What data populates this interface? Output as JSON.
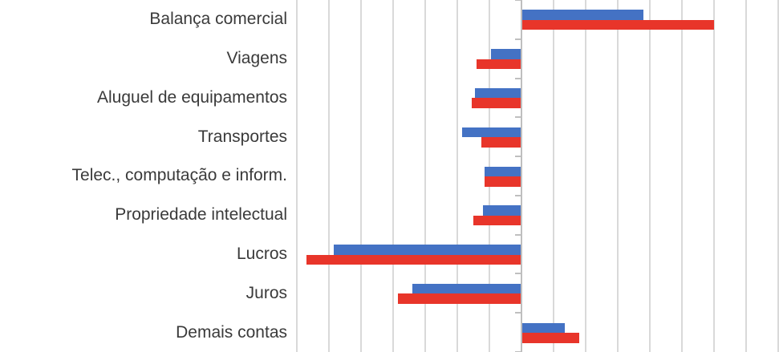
{
  "chart_data": {
    "type": "bar",
    "orientation": "horizontal",
    "title": "",
    "categories": [
      "Balança comercial",
      "Viagens",
      "Aluguel de equipamentos",
      "Transportes",
      "Telec., computação e inform.",
      "Propriedade intelectual",
      "Lucros",
      "Juros",
      "Demais contas"
    ],
    "series": [
      {
        "name": "blue",
        "color": "#4472C4",
        "values": [
          38,
          -9.5,
          -14.5,
          -18.5,
          -11.5,
          -12,
          -58.5,
          -34,
          13.5
        ]
      },
      {
        "name": "red",
        "color": "#E8352A",
        "values": [
          60,
          -14,
          -15.5,
          -12.5,
          -11.5,
          -15,
          -67,
          -38.5,
          18
        ]
      }
    ],
    "xlim": [
      -70,
      80
    ],
    "gridline_step": 10,
    "grid": true,
    "legend_position": "none",
    "axis_value_labels_visible": false
  },
  "colors": {
    "series_blue": "#4472C4",
    "series_red": "#E8352A",
    "gridline": "#D9D9D9",
    "axis_line": "#BFBFBF",
    "label_text": "#3A3A3A",
    "background": "#FFFFFF"
  }
}
